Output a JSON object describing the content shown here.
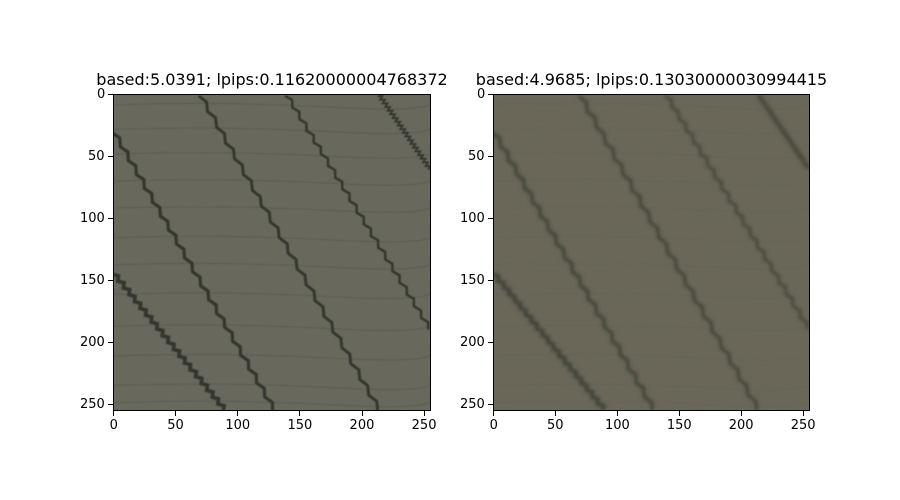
{
  "figures": [
    {
      "title": "based:5.0391; lpips:0.11620000004768372",
      "variant": "sharp",
      "xticks": [
        "0",
        "50",
        "100",
        "150",
        "200",
        "250"
      ],
      "yticks": [
        "0",
        "50",
        "100",
        "150",
        "200",
        "250"
      ],
      "xtick_values": [
        0,
        50,
        100,
        150,
        200,
        250
      ],
      "ytick_values": [
        0,
        50,
        100,
        150,
        200,
        250
      ],
      "image_size": 256
    },
    {
      "title": "based:4.9685; lpips:0.13030000030994415",
      "variant": "blurred",
      "xticks": [
        "0",
        "50",
        "100",
        "150",
        "200",
        "250"
      ],
      "yticks": [
        "0",
        "50",
        "100",
        "150",
        "200",
        "250"
      ],
      "xtick_values": [
        0,
        50,
        100,
        150,
        200,
        250
      ],
      "ytick_values": [
        0,
        50,
        100,
        150,
        200,
        250
      ],
      "image_size": 256
    }
  ],
  "colors": {
    "asphalt_sharp": "#6f6e63",
    "asphalt_blurred": "#6e6b5c",
    "crack_dark": "#2f3129",
    "joint_line": "#55554c"
  }
}
